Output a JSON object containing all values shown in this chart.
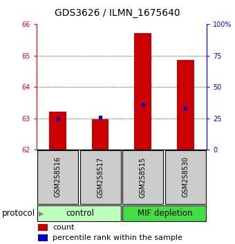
{
  "title": "GDS3626 / ILMN_1675640",
  "samples": [
    "GSM258516",
    "GSM258517",
    "GSM258515",
    "GSM258530"
  ],
  "count_values": [
    63.22,
    62.97,
    65.72,
    64.87
  ],
  "percentile_values": [
    25.0,
    26.0,
    36.0,
    33.0
  ],
  "count_baseline": 62.0,
  "ylim_left": [
    62,
    66
  ],
  "ylim_right": [
    0,
    100
  ],
  "yticks_left": [
    62,
    63,
    64,
    65,
    66
  ],
  "yticks_right": [
    0,
    25,
    50,
    75,
    100
  ],
  "ytick_right_labels": [
    "0",
    "25",
    "50",
    "75",
    "100%"
  ],
  "bar_color": "#cc0000",
  "percentile_color": "#0000cc",
  "groups": [
    {
      "label": "control",
      "samples": [
        "GSM258516",
        "GSM258517"
      ],
      "color": "#bbffbb"
    },
    {
      "label": "MIF depletion",
      "samples": [
        "GSM258515",
        "GSM258530"
      ],
      "color": "#44dd44"
    }
  ],
  "sample_box_color": "#cccccc",
  "protocol_label": "protocol",
  "legend_count_label": "count",
  "legend_percentile_label": "percentile rank within the sample",
  "bar_width": 0.4,
  "title_fontsize": 10,
  "tick_fontsize": 7,
  "label_fontsize": 8.5,
  "sample_fontsize": 7
}
